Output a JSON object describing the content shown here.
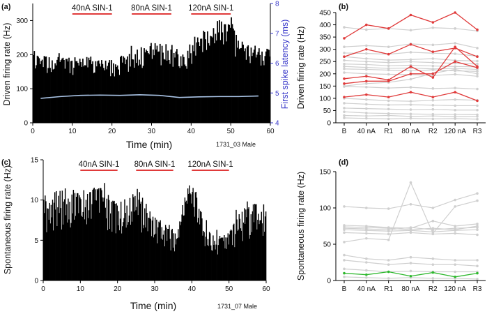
{
  "chart_data": [
    {
      "id": "a",
      "type": "area",
      "panel_label": "(a)",
      "title": "",
      "xlabel": "Time (min)",
      "ylabel": "Driven firing rate (Hz)",
      "y2label": "First spike latency (ms)",
      "xlim": [
        0,
        60
      ],
      "ylim": [
        0,
        350
      ],
      "y2lim": [
        4,
        8
      ],
      "xticks": [
        "0",
        "10",
        "20",
        "30",
        "40",
        "50",
        "60"
      ],
      "yticks": [
        "0",
        "100",
        "200",
        "300"
      ],
      "y2ticks": [
        "4",
        "5",
        "6",
        "7",
        "8"
      ],
      "annotation": "1731_03 Male",
      "applications": [
        {
          "label": "40nA SIN-1",
          "start": 10,
          "end": 20
        },
        {
          "label": "80nA SIN-1",
          "start": 25,
          "end": 35
        },
        {
          "label": "120nA SIN-1",
          "start": 40,
          "end": 50
        }
      ],
      "envelope": [
        {
          "x": 0,
          "y": 205
        },
        {
          "x": 5,
          "y": 190
        },
        {
          "x": 10,
          "y": 192
        },
        {
          "x": 15,
          "y": 195
        },
        {
          "x": 20,
          "y": 185
        },
        {
          "x": 25,
          "y": 210
        },
        {
          "x": 30,
          "y": 235
        },
        {
          "x": 35,
          "y": 230
        },
        {
          "x": 38,
          "y": 200
        },
        {
          "x": 41,
          "y": 255
        },
        {
          "x": 45,
          "y": 285
        },
        {
          "x": 48,
          "y": 310
        },
        {
          "x": 50,
          "y": 300
        },
        {
          "x": 52,
          "y": 245
        },
        {
          "x": 55,
          "y": 230
        },
        {
          "x": 60,
          "y": 225
        }
      ],
      "latency_series": {
        "name": "First spike latency",
        "x": [
          2,
          7,
          12,
          17,
          22,
          27,
          32,
          37,
          42,
          47,
          52,
          57
        ],
        "y": [
          4.82,
          4.88,
          4.92,
          4.93,
          4.92,
          4.94,
          4.92,
          4.85,
          4.87,
          4.88,
          4.88,
          4.9
        ]
      },
      "colors": {
        "bars": "#000000",
        "latency": "#aac4e6",
        "application": "#e03a3a",
        "y2axis": "#3535c8"
      }
    },
    {
      "id": "b",
      "type": "line",
      "panel_label": "(b)",
      "ylabel": "Driven firing rate (Hz)",
      "categories": [
        "B",
        "40 nA",
        "R1",
        "80 nA",
        "R2",
        "120 nA",
        "R3"
      ],
      "ylim": [
        0,
        450
      ],
      "yticks": [
        "0",
        "50",
        "100",
        "150",
        "200",
        "250",
        "300",
        "350",
        "400",
        "450"
      ],
      "highlight_color": "#e03a3a",
      "background_color": "#cfcfcf",
      "highlighted_series": [
        {
          "name": "h1",
          "values": [
            345,
            400,
            385,
            440,
            410,
            450,
            380
          ]
        },
        {
          "name": "h2",
          "values": [
            270,
            300,
            280,
            320,
            290,
            305,
            270
          ]
        },
        {
          "name": "h3",
          "values": [
            180,
            190,
            175,
            230,
            185,
            310,
            230
          ]
        },
        {
          "name": "h4",
          "values": [
            160,
            170,
            170,
            200,
            200,
            250,
            225
          ]
        },
        {
          "name": "h5",
          "values": [
            105,
            115,
            105,
            125,
            105,
            125,
            90
          ]
        }
      ],
      "background_series": [
        {
          "name": "g1",
          "values": [
            390,
            380,
            385,
            378,
            388,
            385,
            375
          ]
        },
        {
          "name": "g2",
          "values": [
            310,
            315,
            310,
            322,
            318,
            325,
            305
          ]
        },
        {
          "name": "g3",
          "values": [
            285,
            283,
            280,
            288,
            284,
            282,
            272
          ]
        },
        {
          "name": "g4",
          "values": [
            270,
            262,
            256,
            258,
            262,
            255,
            252
          ]
        },
        {
          "name": "g5",
          "values": [
            255,
            250,
            246,
            249,
            246,
            243,
            240
          ]
        },
        {
          "name": "g6",
          "values": [
            240,
            238,
            233,
            235,
            232,
            230,
            228
          ]
        },
        {
          "name": "g7",
          "values": [
            230,
            226,
            222,
            224,
            220,
            222,
            218
          ]
        },
        {
          "name": "g8",
          "values": [
            220,
            218,
            215,
            212,
            216,
            212,
            210
          ]
        },
        {
          "name": "g9",
          "values": [
            205,
            200,
            198,
            197,
            193,
            198,
            190
          ]
        },
        {
          "name": "g10",
          "values": [
            150,
            160,
            165,
            178,
            202,
            218,
            200
          ]
        },
        {
          "name": "g11",
          "values": [
            148,
            146,
            142,
            145,
            140,
            142,
            138
          ]
        },
        {
          "name": "g12",
          "values": [
            100,
            95,
            90,
            88,
            92,
            95,
            92
          ]
        },
        {
          "name": "g13",
          "values": [
            80,
            76,
            73,
            74,
            72,
            70,
            70
          ]
        },
        {
          "name": "g14",
          "values": [
            60,
            58,
            56,
            54,
            55,
            52,
            52
          ]
        },
        {
          "name": "g15",
          "values": [
            45,
            40,
            38,
            36,
            35,
            34,
            33
          ]
        },
        {
          "name": "g16",
          "values": [
            30,
            28,
            30,
            26,
            28,
            25,
            26
          ]
        },
        {
          "name": "g17",
          "values": [
            20,
            18,
            16,
            18,
            16,
            17,
            15
          ]
        }
      ]
    },
    {
      "id": "c",
      "type": "area",
      "panel_label": "(c)",
      "xlabel": "Time (min)",
      "ylabel": "Spontaneous firing rate (Hz)",
      "xlim": [
        0,
        60
      ],
      "ylim": [
        0,
        15
      ],
      "xticks": [
        "0",
        "10",
        "20",
        "30",
        "40",
        "50",
        "60"
      ],
      "yticks": [
        "0",
        "5",
        "10",
        "15"
      ],
      "annotation": "1731_07 Male",
      "applications": [
        {
          "label": "40nA SIN-1",
          "start": 10,
          "end": 20
        },
        {
          "label": "80nA SIN-1",
          "start": 25,
          "end": 35
        },
        {
          "label": "120nA SIN-1",
          "start": 40,
          "end": 50
        }
      ],
      "envelope": [
        {
          "x": 0,
          "y": 10.5
        },
        {
          "x": 5,
          "y": 11.5
        },
        {
          "x": 10,
          "y": 11.2
        },
        {
          "x": 15,
          "y": 11.8
        },
        {
          "x": 20,
          "y": 9.5
        },
        {
          "x": 23,
          "y": 10.5
        },
        {
          "x": 25,
          "y": 12.0
        },
        {
          "x": 27,
          "y": 10.0
        },
        {
          "x": 30,
          "y": 8.0
        },
        {
          "x": 33,
          "y": 7.0
        },
        {
          "x": 36,
          "y": 6.0
        },
        {
          "x": 38,
          "y": 10.5
        },
        {
          "x": 40,
          "y": 13.0
        },
        {
          "x": 42,
          "y": 9.0
        },
        {
          "x": 45,
          "y": 6.5
        },
        {
          "x": 48,
          "y": 5.5
        },
        {
          "x": 50,
          "y": 6.0
        },
        {
          "x": 53,
          "y": 8.5
        },
        {
          "x": 56,
          "y": 9.5
        },
        {
          "x": 60,
          "y": 9.8
        }
      ],
      "colors": {
        "bars": "#000000",
        "application": "#e03a3a"
      }
    },
    {
      "id": "d",
      "type": "line",
      "panel_label": "(d)",
      "ylabel": "Spontaneous firing rate (Hz)",
      "categories": [
        "B",
        "40 nA",
        "R1",
        "80 nA",
        "R2",
        "120 nA",
        "R3"
      ],
      "ylim": [
        0,
        150
      ],
      "yticks": [
        "0",
        "50",
        "100",
        "150"
      ],
      "highlight_color": "#2db82d",
      "background_color": "#cfcfcf",
      "highlighted_series": [
        {
          "name": "h1",
          "values": [
            10,
            8,
            12,
            6,
            11,
            5,
            10
          ]
        }
      ],
      "background_series": [
        {
          "name": "g1",
          "values": [
            102,
            100,
            99,
            105,
            100,
            111,
            120
          ]
        },
        {
          "name": "g2",
          "values": [
            76,
            75,
            73,
            72,
            82,
            75,
            78
          ]
        },
        {
          "name": "g3",
          "values": [
            74,
            73,
            72,
            70,
            72,
            70,
            75
          ]
        },
        {
          "name": "g4",
          "values": [
            72,
            71,
            70,
            73,
            70,
            72,
            73
          ]
        },
        {
          "name": "g5",
          "values": [
            70,
            69,
            68,
            69,
            67,
            69,
            70
          ]
        },
        {
          "name": "g6",
          "values": [
            66,
            65,
            64,
            66,
            64,
            65,
            63
          ]
        },
        {
          "name": "g7",
          "values": [
            53,
            58,
            56,
            135,
            65,
            102,
            110
          ]
        },
        {
          "name": "g8",
          "values": [
            35,
            30,
            28,
            32,
            30,
            28,
            28
          ]
        },
        {
          "name": "g9",
          "values": [
            28,
            25,
            22,
            24,
            22,
            22,
            20
          ]
        },
        {
          "name": "g10",
          "values": [
            16,
            14,
            12,
            13,
            12,
            12,
            12
          ]
        },
        {
          "name": "g11",
          "values": [
            5,
            4,
            3,
            4,
            3,
            3,
            2
          ]
        }
      ]
    }
  ]
}
